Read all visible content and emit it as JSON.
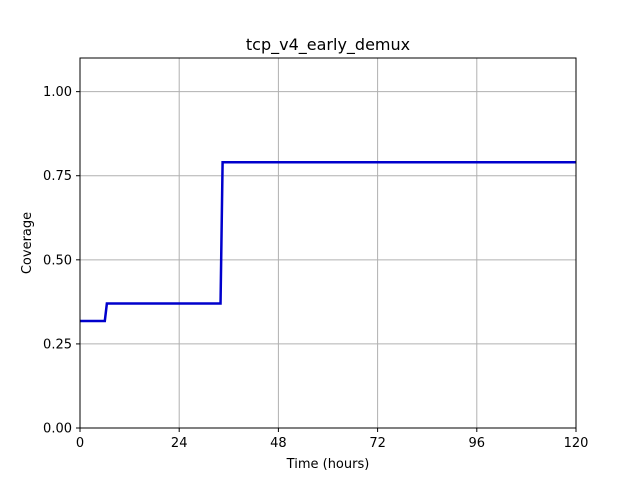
{
  "chart_data": {
    "type": "line",
    "title": "tcp_v4_early_demux",
    "xlabel": "Time (hours)",
    "ylabel": "Coverage",
    "xlim": [
      0,
      120
    ],
    "ylim": [
      0,
      1.1
    ],
    "xticks": [
      0,
      24,
      48,
      72,
      96,
      120
    ],
    "xtick_labels": [
      "0",
      "24",
      "48",
      "72",
      "96",
      "120"
    ],
    "yticks": [
      0,
      0.25,
      0.5,
      0.75,
      1.0
    ],
    "ytick_labels": [
      "0.00",
      "0.25",
      "0.50",
      "0.75",
      "1.00"
    ],
    "grid": true,
    "legend": false,
    "series": [
      {
        "color": "#0000cc",
        "step": true,
        "x": [
          0,
          6,
          6.5,
          34,
          34.5,
          120
        ],
        "y": [
          0.318,
          0.318,
          0.37,
          0.37,
          0.79,
          0.79
        ]
      }
    ]
  }
}
